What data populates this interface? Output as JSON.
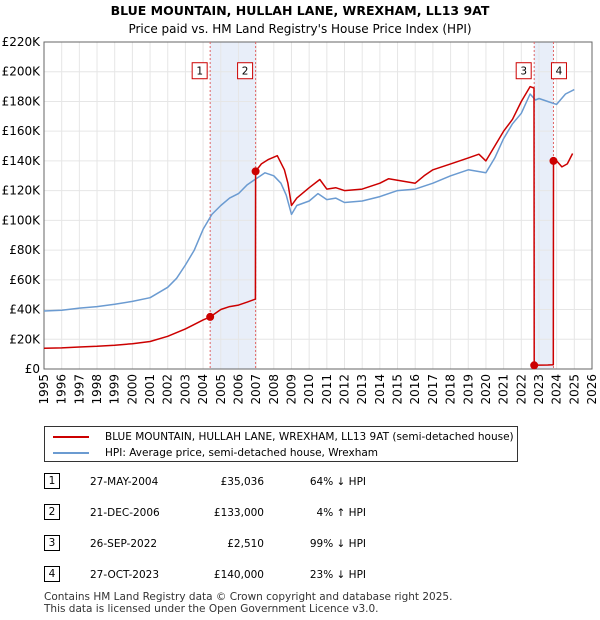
{
  "chart_data": {
    "type": "line",
    "title": "BLUE MOUNTAIN, HULLAH LANE, WREXHAM, LL13 9AT",
    "subtitle": "Price paid vs. HM Land Registry's House Price Index (HPI)",
    "xlim": [
      1995,
      2026
    ],
    "ylim": [
      0,
      220000
    ],
    "x_ticks": [
      "1995",
      "1996",
      "1997",
      "1998",
      "1999",
      "2000",
      "2001",
      "2002",
      "2003",
      "2004",
      "2005",
      "2006",
      "2007",
      "2008",
      "2009",
      "2010",
      "2011",
      "2012",
      "2013",
      "2014",
      "2015",
      "2016",
      "2017",
      "2018",
      "2019",
      "2020",
      "2021",
      "2022",
      "2023",
      "2024",
      "2025",
      "2026"
    ],
    "y_ticks": [
      {
        "value": 0,
        "label": "£0"
      },
      {
        "value": 20000,
        "label": "£20K"
      },
      {
        "value": 40000,
        "label": "£40K"
      },
      {
        "value": 60000,
        "label": "£60K"
      },
      {
        "value": 80000,
        "label": "£80K"
      },
      {
        "value": 100000,
        "label": "£100K"
      },
      {
        "value": 120000,
        "label": "£120K"
      },
      {
        "value": 140000,
        "label": "£140K"
      },
      {
        "value": 160000,
        "label": "£160K"
      },
      {
        "value": 180000,
        "label": "£180K"
      },
      {
        "value": 200000,
        "label": "£200K"
      },
      {
        "value": 220000,
        "label": "£220K"
      }
    ],
    "shaded_ranges": [
      [
        2004.4,
        2006.97
      ],
      [
        2022.73,
        2023.82
      ]
    ],
    "series": [
      {
        "name": "BLUE MOUNTAIN, HULLAH LANE, WREXHAM, LL13 9AT (semi-detached house)",
        "color": "#cc0000",
        "x": [
          1995,
          1996,
          1997,
          1998,
          1999,
          2000,
          2001,
          2002,
          2003,
          2003.5,
          2004,
          2004.4,
          2005,
          2005.5,
          2006,
          2006.5,
          2006.96,
          2006.97,
          2007.3,
          2007.7,
          2008.2,
          2008.6,
          2008.8,
          2009.0,
          2009.3,
          2010,
          2010.6,
          2011,
          2011.5,
          2012,
          2013,
          2014,
          2014.5,
          2015,
          2016,
          2016.5,
          2017,
          2018,
          2019,
          2019.6,
          2020,
          2020.5,
          2021,
          2021.5,
          2022,
          2022.5,
          2022.72,
          2022.73,
          2023,
          2023.5,
          2023.81,
          2023.82,
          2024,
          2024.3,
          2024.6,
          2024.9
        ],
        "values": [
          14000,
          14200,
          14800,
          15300,
          16000,
          17000,
          18500,
          22000,
          27000,
          30000,
          33000,
          35036,
          40000,
          42000,
          43000,
          45000,
          47000,
          133000,
          138000,
          141000,
          143500,
          134000,
          125000,
          110000,
          115000,
          122000,
          127500,
          121000,
          122000,
          120000,
          121000,
          125000,
          128000,
          127000,
          125000,
          130000,
          134000,
          138000,
          142000,
          144500,
          140000,
          150000,
          160000,
          168000,
          180000,
          190000,
          189000,
          2510,
          2600,
          2700,
          2800,
          140000,
          140000,
          136000,
          138000,
          145000
        ]
      },
      {
        "name": "HPI: Average price, semi-detached house, Wrexham",
        "color": "#6b9bd1",
        "x": [
          1995,
          1996,
          1997,
          1998,
          1999,
          2000,
          2001,
          2002,
          2002.5,
          2003,
          2003.5,
          2004,
          2004.5,
          2005,
          2005.5,
          2006,
          2006.5,
          2007,
          2007.5,
          2008,
          2008.4,
          2008.7,
          2009.0,
          2009.3,
          2010,
          2010.5,
          2011,
          2011.5,
          2012,
          2013,
          2014,
          2015,
          2016,
          2017,
          2018,
          2019,
          2020,
          2020.5,
          2021,
          2021.5,
          2022,
          2022.5,
          2022.8,
          2023,
          2023.5,
          2024,
          2024.5,
          2025
        ],
        "values": [
          39000,
          39500,
          41000,
          42000,
          43500,
          45500,
          48000,
          55000,
          61000,
          70000,
          80000,
          94000,
          104000,
          110000,
          115000,
          118000,
          124000,
          128000,
          132000,
          130000,
          125000,
          117000,
          104000,
          110000,
          113000,
          118000,
          114000,
          115000,
          112000,
          113000,
          116000,
          120000,
          121000,
          125000,
          130000,
          134000,
          132000,
          142000,
          155000,
          165000,
          172000,
          185000,
          181000,
          182000,
          180000,
          178000,
          185000,
          188000
        ]
      }
    ],
    "sales": [
      {
        "label": "1",
        "x": 2004.4,
        "value": 35036
      },
      {
        "label": "2",
        "x": 2006.97,
        "value": 133000
      },
      {
        "label": "3",
        "x": 2022.73,
        "value": 2510
      },
      {
        "label": "4",
        "x": 2023.82,
        "value": 140000
      }
    ],
    "marker_y_value": 200000
  },
  "legend": {
    "property": "BLUE MOUNTAIN, HULLAH LANE, WREXHAM, LL13 9AT (semi-detached house)",
    "hpi": "HPI: Average price, semi-detached house, Wrexham"
  },
  "transactions": [
    {
      "num": "1",
      "date": "27-MAY-2004",
      "price": "£35,036",
      "hpi": "64% ↓ HPI"
    },
    {
      "num": "2",
      "date": "21-DEC-2006",
      "price": "£133,000",
      "hpi": "4% ↑ HPI"
    },
    {
      "num": "3",
      "date": "26-SEP-2022",
      "price": "£2,510",
      "hpi": "99% ↓ HPI"
    },
    {
      "num": "4",
      "date": "27-OCT-2023",
      "price": "£140,000",
      "hpi": "23% ↓ HPI"
    }
  ],
  "footer": {
    "line1": "Contains HM Land Registry data © Crown copyright and database right 2025.",
    "line2": "This data is licensed under the Open Government Licence v3.0."
  }
}
